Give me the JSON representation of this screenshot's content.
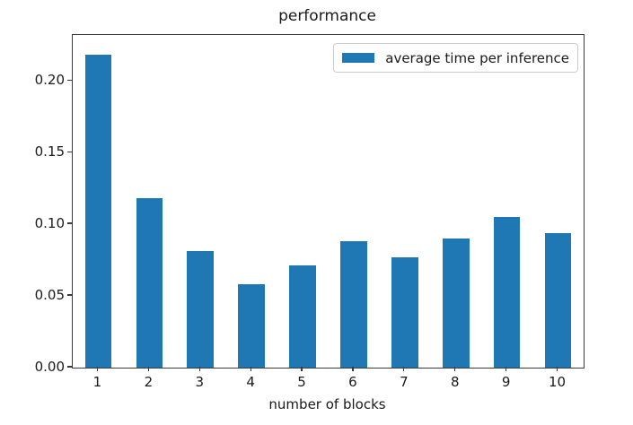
{
  "chart_data": {
    "type": "bar",
    "title": "performance",
    "xlabel": "number of blocks",
    "ylabel": "",
    "categories": [
      "1",
      "2",
      "3",
      "4",
      "5",
      "6",
      "7",
      "8",
      "9",
      "10"
    ],
    "series": [
      {
        "name": "average time per inference",
        "values": [
          0.218,
          0.118,
          0.081,
          0.058,
          0.071,
          0.088,
          0.077,
          0.09,
          0.105,
          0.094
        ]
      }
    ],
    "ylim": [
      0,
      0.232
    ],
    "yticks": {
      "values": [
        0,
        0.05,
        0.1,
        0.15,
        0.2
      ],
      "labels": [
        "0.00",
        "0.05",
        "0.10",
        "0.15",
        "0.20"
      ]
    },
    "legend_position": "upper right",
    "grid": false,
    "bar_color": "#1f77b4",
    "axis_color": "#3a3a3a"
  }
}
